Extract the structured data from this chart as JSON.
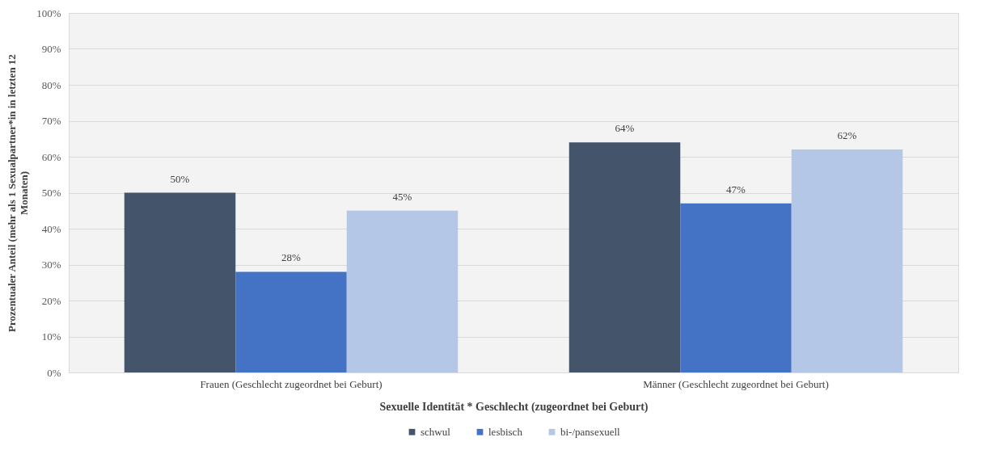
{
  "chart_data": {
    "type": "bar",
    "xlabel": "Sexuelle Identität * Geschlecht (zugeordnet bei Geburt)",
    "ylabel": "Prozentualer Anteil (mehr als 1 Sexualpartner*in in letzten 12 Monaten)",
    "categories": [
      "Frauen (Geschlecht zugeordnet bei Geburt)",
      "Männer (Geschlecht zugeordnet bei Geburt)"
    ],
    "series": [
      {
        "name": "schwul",
        "color": "#44546a",
        "values": [
          50,
          64
        ],
        "value_labels": [
          "50%",
          "64%"
        ]
      },
      {
        "name": "lesbisch",
        "color": "#4472c4",
        "values": [
          28,
          47
        ],
        "value_labels": [
          "28%",
          "47%"
        ]
      },
      {
        "name": "bi-/pansexuell",
        "color": "#b4c7e7",
        "values": [
          45,
          62
        ],
        "value_labels": [
          "45%",
          "62%"
        ]
      }
    ],
    "ylim": [
      0,
      100
    ],
    "yticks": [
      {
        "value": 0,
        "label": "0%"
      },
      {
        "value": 10,
        "label": "10%"
      },
      {
        "value": 20,
        "label": "20%"
      },
      {
        "value": 30,
        "label": "30%"
      },
      {
        "value": 40,
        "label": "40%"
      },
      {
        "value": 50,
        "label": "50%"
      },
      {
        "value": 60,
        "label": "60%"
      },
      {
        "value": 70,
        "label": "70%"
      },
      {
        "value": 80,
        "label": "80%"
      },
      {
        "value": 90,
        "label": "90%"
      },
      {
        "value": 100,
        "label": "100%"
      }
    ],
    "grid": "y",
    "legend": "bottom"
  }
}
